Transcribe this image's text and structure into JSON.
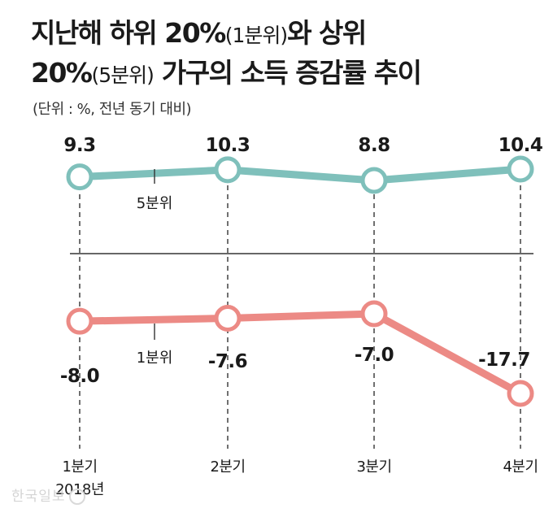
{
  "title": {
    "line1_main": "지난해 하위 20%",
    "line1_paren": "(1분위)",
    "line1_tail": "와 상위",
    "line2_main": "20%",
    "line2_paren": "(5분위)",
    "line2_tail": " 가구의 소득 증감률 추이"
  },
  "unit_note": "(단위 : %, 전년 동기 대비)",
  "watermark": "한국일보",
  "chart_data": {
    "type": "line",
    "categories": [
      "1분기",
      "2분기",
      "3분기",
      "4분기"
    ],
    "year_label": "2018년",
    "series": [
      {
        "name": "5분위",
        "values": [
          9.3,
          10.3,
          8.8,
          10.4
        ],
        "color": "#7fc0bb",
        "value_labels": [
          "9.3",
          "10.3",
          "8.8",
          "10.4"
        ]
      },
      {
        "name": "1분위",
        "values": [
          -8.0,
          -7.6,
          -7.0,
          -17.7
        ],
        "color": "#ec8a85",
        "value_labels": [
          "-8.0",
          "-7.6",
          "-7.0",
          "-17.7"
        ]
      }
    ],
    "zero_line": true,
    "grid": false
  }
}
